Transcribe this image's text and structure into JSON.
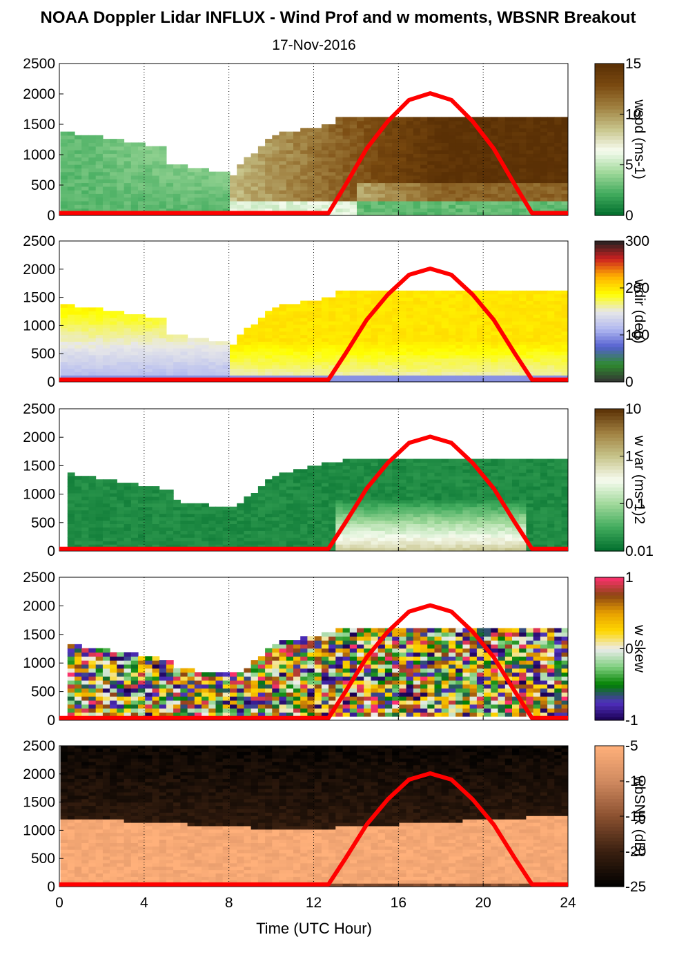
{
  "title": "NOAA Doppler Lidar INFLUX - Wind Prof and w moments, WBSNR Breakout",
  "subtitle": "17-Nov-2016",
  "chart_data": {
    "type": "heatmap",
    "xlabel": "Time (UTC Hour)",
    "xlim": [
      0,
      24
    ],
    "x_ticks": [
      "0",
      "4",
      "8",
      "12",
      "16",
      "20",
      "24"
    ],
    "ylim": [
      0,
      2500
    ],
    "y_ticks": [
      "0",
      "500",
      "1000",
      "1500",
      "2000",
      "2500"
    ],
    "vertical_gridlines": "dotted at 4, 8, 12, 16, 20, 24",
    "overlay": {
      "name": "solar elevation curve",
      "color": "#ff0000",
      "x": [
        0,
        12.7,
        13.5,
        14.5,
        15.5,
        16.5,
        17.5,
        18.5,
        19.5,
        20.5,
        21.5,
        22.3,
        24
      ],
      "y": [
        40,
        40,
        500,
        1100,
        1550,
        1900,
        2010,
        1900,
        1550,
        1100,
        500,
        40,
        40
      ]
    },
    "panels": [
      {
        "id": "wspd",
        "colorbar_label": "wspd (ms-1)",
        "colorbar_ticks": [
          "0",
          "5",
          "10",
          "15"
        ],
        "colormap": [
          "#006d2c",
          "#41ab5d",
          "#a1d99b",
          "#f7fcf0",
          "#c7c48a",
          "#a08040",
          "#7a4a10",
          "#5a3005"
        ]
      },
      {
        "id": "wdir",
        "colorbar_label": "wdir (deg)",
        "colorbar_ticks": [
          "0",
          "100",
          "200",
          "300"
        ],
        "colormap": [
          "#333333",
          "#2e8b2e",
          "#5560d0",
          "#b0b8f0",
          "#e8e8e8",
          "#ffff00",
          "#ffb000",
          "#cc2020",
          "#222222"
        ]
      },
      {
        "id": "wvar",
        "colorbar_label": "w var (ms-1)2",
        "colorbar_ticks": [
          "0.01",
          "0.1",
          "1",
          "10"
        ],
        "colormap": [
          "#006d2c",
          "#41ab5d",
          "#a1d99b",
          "#f7fcf0",
          "#c7c48a",
          "#a08040",
          "#5a3005"
        ]
      },
      {
        "id": "wskew",
        "colorbar_label": "w skew",
        "colorbar_ticks": [
          "-1",
          "0",
          "1"
        ],
        "colormap": [
          "#1a0050",
          "#5030c0",
          "#008000",
          "#80d080",
          "#ececec",
          "#ffd700",
          "#e8a000",
          "#8b4513",
          "#ff3070"
        ]
      },
      {
        "id": "wbsnr",
        "colorbar_label": "wbSNR (dB)",
        "colorbar_ticks": [
          "-25",
          "-20",
          "-15",
          "-10",
          "-5"
        ],
        "colormap": [
          "#000000",
          "#3a2010",
          "#8a5030",
          "#d08a60",
          "#ffb07a"
        ]
      }
    ]
  }
}
